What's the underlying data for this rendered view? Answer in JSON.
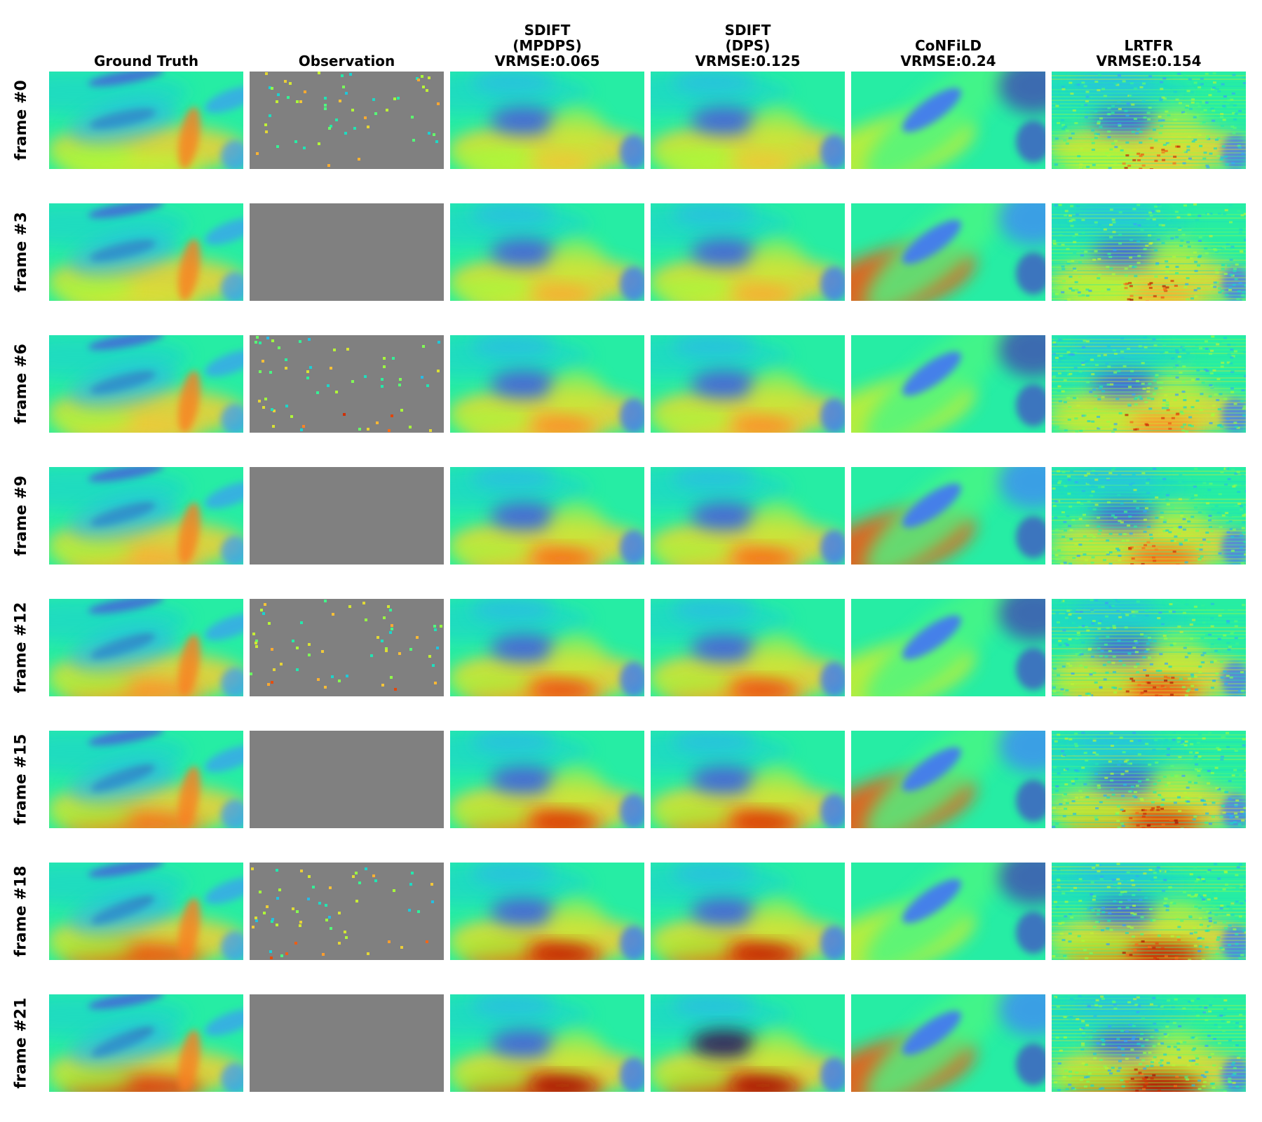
{
  "figure": {
    "columns": [
      {
        "title_lines": [
          "Ground Truth"
        ],
        "key": "ground_truth"
      },
      {
        "title_lines": [
          "Observation"
        ],
        "key": "observation"
      },
      {
        "title_lines": [
          "SDIFT",
          "(MPDPS)",
          "VRMSE:0.065"
        ],
        "key": "sdift_mpdps",
        "vrmse": 0.065
      },
      {
        "title_lines": [
          "SDIFT",
          "(DPS)",
          "VRMSE:0.125"
        ],
        "key": "sdift_dps",
        "vrmse": 0.125
      },
      {
        "title_lines": [
          "CoNFiLD",
          "VRMSE:0.24"
        ],
        "key": "confild",
        "vrmse": 0.24
      },
      {
        "title_lines": [
          "LRTFR",
          "VRMSE:0.154"
        ],
        "key": "lrtfr",
        "vrmse": 0.154
      }
    ],
    "rows": [
      {
        "label": "frame #0",
        "frame": 0,
        "observed": true
      },
      {
        "label": "frame #3",
        "frame": 3,
        "observed": false
      },
      {
        "label": "frame #6",
        "frame": 6,
        "observed": true
      },
      {
        "label": "frame #9",
        "frame": 9,
        "observed": false
      },
      {
        "label": "frame #12",
        "frame": 12,
        "observed": true
      },
      {
        "label": "frame #15",
        "frame": 15,
        "observed": false
      },
      {
        "label": "frame #18",
        "frame": 18,
        "observed": true
      },
      {
        "label": "frame #21",
        "frame": 21,
        "observed": false
      }
    ],
    "colormap": "turbo",
    "colors": {
      "turbo_stops": [
        "#30123b",
        "#4145ab",
        "#4675ed",
        "#39a2fc",
        "#1bcfd4",
        "#24eca6",
        "#61fc6c",
        "#a4fc3b",
        "#d1e834",
        "#f3c63a",
        "#fe9b2d",
        "#f36315",
        "#d93806",
        "#b11901",
        "#7a0403"
      ],
      "missing_value": "#808080",
      "background": "#ffffff"
    }
  }
}
